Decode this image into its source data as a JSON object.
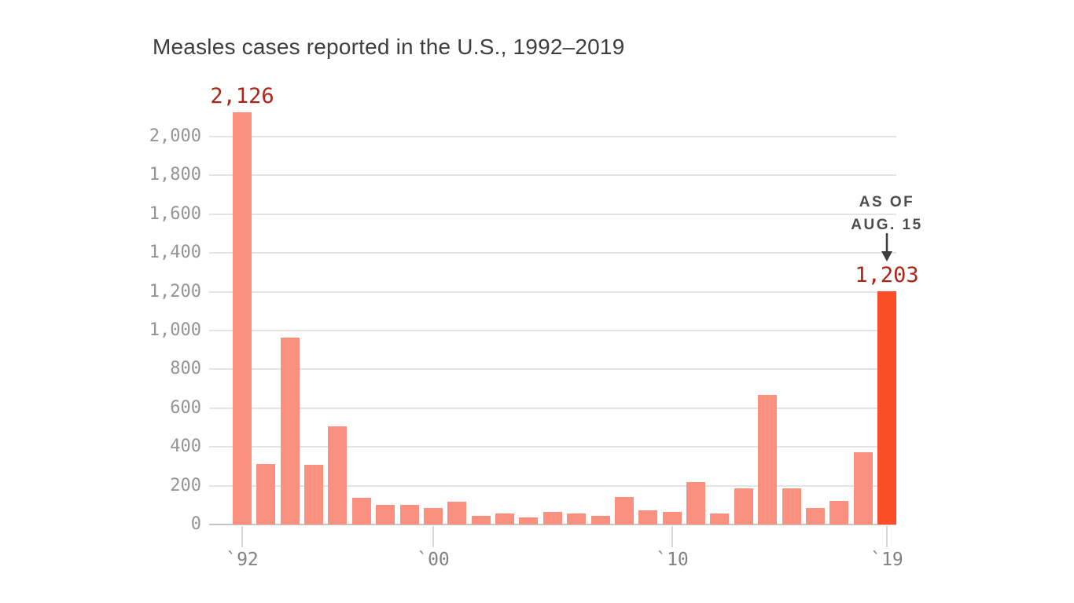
{
  "page": {
    "background": "#ffffff"
  },
  "chart_data": {
    "type": "bar",
    "title": "Measles cases reported in the U.S., 1992–2019",
    "categories": [
      1992,
      1993,
      1994,
      1995,
      1996,
      1997,
      1998,
      1999,
      2000,
      2001,
      2002,
      2003,
      2004,
      2005,
      2006,
      2007,
      2008,
      2009,
      2010,
      2011,
      2012,
      2013,
      2014,
      2015,
      2016,
      2017,
      2018,
      2019
    ],
    "values": [
      2126,
      312,
      963,
      309,
      508,
      138,
      100,
      100,
      86,
      116,
      44,
      56,
      37,
      66,
      55,
      43,
      140,
      71,
      63,
      220,
      55,
      187,
      667,
      188,
      86,
      120,
      372,
      1203
    ],
    "xlabel": "",
    "ylabel": "",
    "ylim": [
      0,
      2126
    ],
    "grid": true,
    "legend": "none",
    "y_ticks": [
      {
        "value": 0,
        "label": "0"
      },
      {
        "value": 200,
        "label": "200"
      },
      {
        "value": 400,
        "label": "400"
      },
      {
        "value": 600,
        "label": "600"
      },
      {
        "value": 800,
        "label": "800"
      },
      {
        "value": 1000,
        "label": "1,000"
      },
      {
        "value": 1200,
        "label": "1,200"
      },
      {
        "value": 1400,
        "label": "1,400"
      },
      {
        "value": 1600,
        "label": "1,600"
      },
      {
        "value": 1800,
        "label": "1,800"
      },
      {
        "value": 2000,
        "label": "2,000"
      }
    ],
    "x_ticks": [
      {
        "year": 1992,
        "label": "`92"
      },
      {
        "year": 2000,
        "label": "`00"
      },
      {
        "year": 2010,
        "label": "`10"
      },
      {
        "year": 2019,
        "label": "`19"
      }
    ],
    "colors": {
      "bar": "#fa9180",
      "highlight_bar": "#fb4d27",
      "value_label": "#ad2517",
      "gridline": "#e4e4e4",
      "axis_line": "#c6c6c6",
      "axis_text": "#949494"
    },
    "highlight_year": 2019,
    "annotations": {
      "peak_year": 1992,
      "peak_value_label": "2,126",
      "current_year": 2019,
      "current_value_label": "1,203",
      "as_of_line1": "AS OF",
      "as_of_line2": "AUG. 15",
      "arrow_icon": "down-arrow"
    }
  }
}
